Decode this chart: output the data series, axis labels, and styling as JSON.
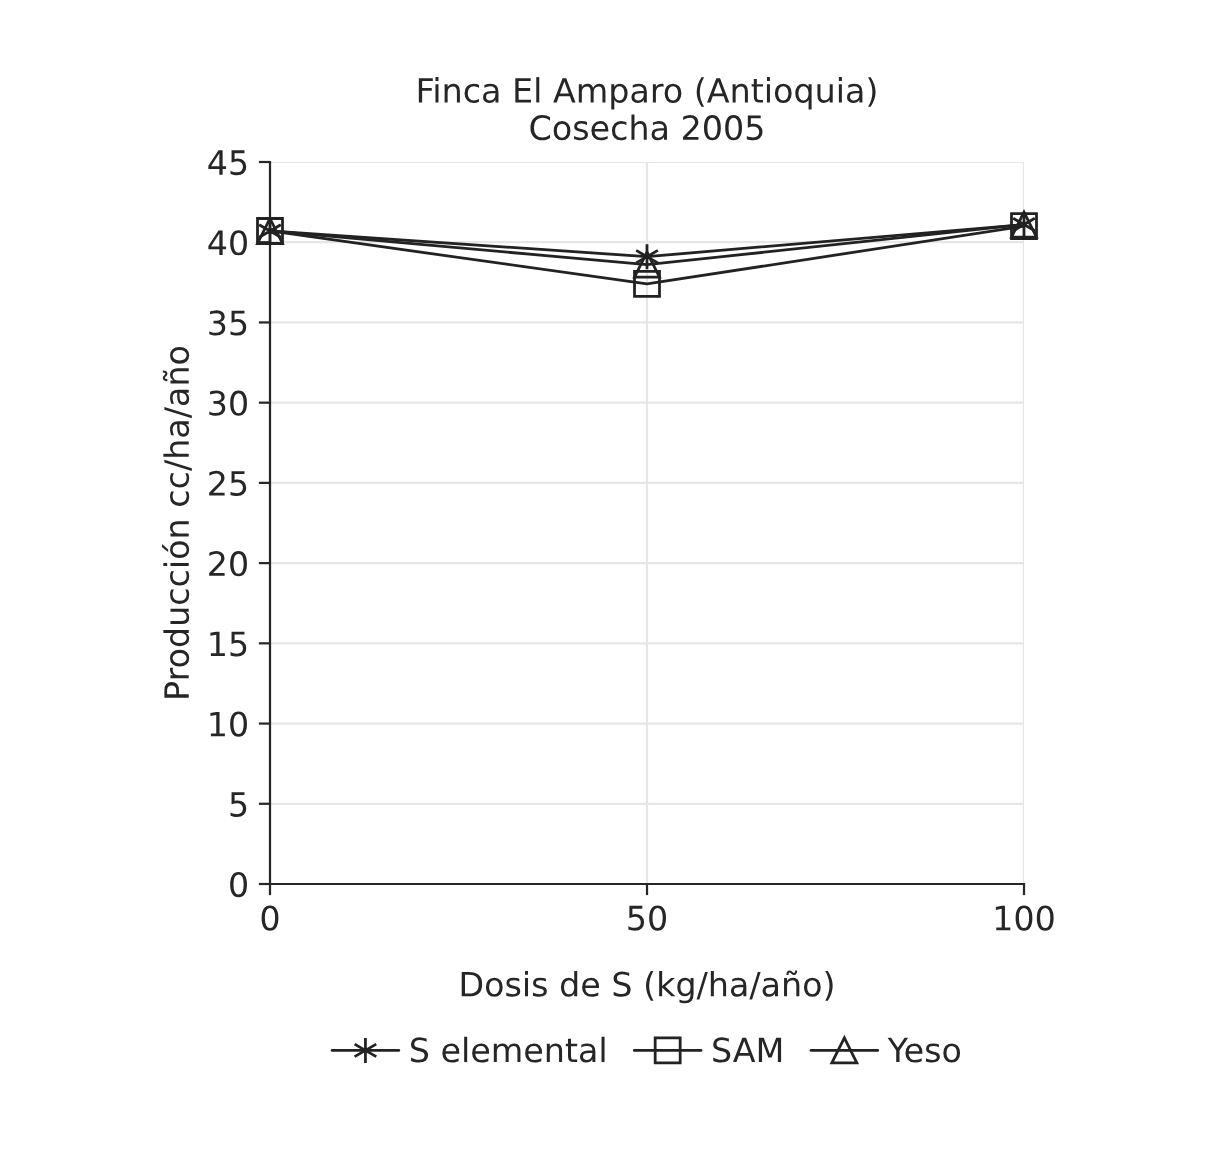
{
  "chart_data": {
    "type": "line",
    "title": "Finca El Amparo (Antioquia)\nCosecha 2005",
    "xlabel": "Dosis de S (kg/ha/año)",
    "ylabel": "Producción cc/ha/año",
    "x": [
      0,
      50,
      100
    ],
    "xlim": [
      0,
      100
    ],
    "xticks": [
      0,
      50,
      100
    ],
    "ylim": [
      0,
      45
    ],
    "yticks": [
      0,
      5,
      10,
      15,
      20,
      25,
      30,
      35,
      40,
      45
    ],
    "series": [
      {
        "name": "S elemental",
        "color": "#222222",
        "marker": "cross",
        "values": [
          40.7,
          39.1,
          41.1
        ]
      },
      {
        "name": "SAM",
        "color": "#222222",
        "marker": "square",
        "values": [
          40.7,
          37.4,
          41.0
        ]
      },
      {
        "name": "Yeso",
        "color": "#222222",
        "marker": "triangle",
        "values": [
          40.7,
          38.6,
          41.1
        ]
      }
    ],
    "grid": true,
    "legend": "bottom",
    "line_style": "solid"
  }
}
